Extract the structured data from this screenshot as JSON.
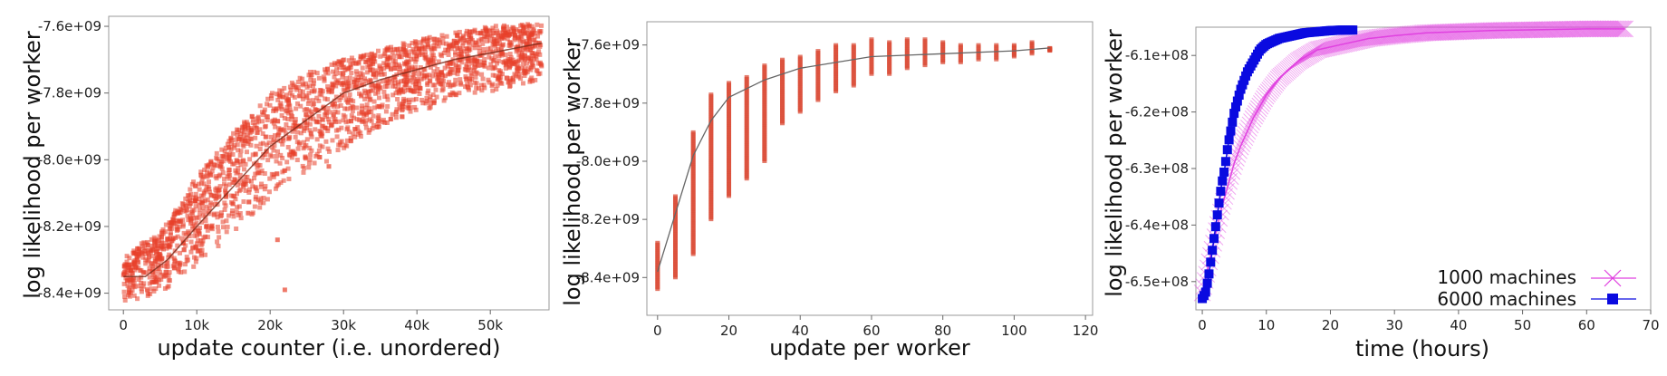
{
  "chart_data": [
    {
      "type": "scatter",
      "xlabel": "update counter (i.e. unordered)",
      "ylabel": "log likelihood per worker",
      "xlim": [
        -2000,
        58000
      ],
      "ylim": [
        -8450000000.0,
        -7570000000.0
      ],
      "x_ticks": [
        0,
        10000,
        20000,
        30000,
        40000,
        50000
      ],
      "x_tick_labels": [
        "0",
        "10k",
        "20k",
        "30k",
        "40k",
        "50k"
      ],
      "y_ticks": [
        -8400000000.0,
        -8200000000.0,
        -8000000000.0,
        -7800000000.0,
        -7600000000.0
      ],
      "y_tick_labels": [
        "-8.4e+09",
        "-8.2e+09",
        "-8.0e+09",
        "-7.8e+09",
        "-7.6e+09"
      ],
      "colors": {
        "points": "#e8402a",
        "trend": "#7a2a1a"
      },
      "series": [
        {
          "trend": [
            [
              0,
              -8350000000.0
            ],
            [
              3000,
              -8350000000.0
            ],
            [
              6000,
              -8300000000.0
            ],
            [
              10000,
              -8200000000.0
            ],
            [
              15000,
              -8080000000.0
            ],
            [
              20000,
              -7960000000.0
            ],
            [
              25000,
              -7880000000.0
            ],
            [
              30000,
              -7800000000.0
            ],
            [
              35000,
              -7760000000.0
            ],
            [
              40000,
              -7730000000.0
            ],
            [
              45000,
              -7700000000.0
            ],
            [
              50000,
              -7680000000.0
            ],
            [
              57000,
              -7650000000.0
            ]
          ],
          "band": [
            [
              0,
              -8430000000.0,
              -8280000000.0
            ],
            [
              5000,
              -8400000000.0,
              -8220000000.0
            ],
            [
              10000,
              -8320000000.0,
              -8050000000.0
            ],
            [
              15000,
              -8220000000.0,
              -7920000000.0
            ],
            [
              20000,
              -8120000000.0,
              -7800000000.0
            ],
            [
              25000,
              -8050000000.0,
              -7740000000.0
            ],
            [
              30000,
              -7970000000.0,
              -7700000000.0
            ],
            [
              35000,
              -7900000000.0,
              -7670000000.0
            ],
            [
              40000,
              -7860000000.0,
              -7640000000.0
            ],
            [
              45000,
              -7820000000.0,
              -7620000000.0
            ],
            [
              50000,
              -7800000000.0,
              -7600000000.0
            ],
            [
              57000,
              -7760000000.0,
              -7590000000.0
            ]
          ],
          "outliers": [
            [
              22000,
              -8390000000.0
            ],
            [
              21000,
              -8240000000.0
            ],
            [
              12000,
              -8200000000.0
            ],
            [
              28000,
              -8020000000.0
            ],
            [
              17000,
              -8160000000.0
            ]
          ]
        }
      ]
    },
    {
      "type": "scatter",
      "xlabel": "update per worker",
      "ylabel": "log likelihood per worker",
      "xlim": [
        -3,
        122
      ],
      "ylim": [
        -8530000000.0,
        -7520000000.0
      ],
      "x_ticks": [
        0,
        20,
        40,
        60,
        80,
        100,
        120
      ],
      "x_tick_labels": [
        "0",
        "20",
        "40",
        "60",
        "80",
        "100",
        "120"
      ],
      "y_ticks": [
        -8400000000.0,
        -8200000000.0,
        -8000000000.0,
        -7800000000.0,
        -7600000000.0
      ],
      "y_tick_labels": [
        "-8.4e+09",
        "-8.2e+09",
        "-8.0e+09",
        "-7.8e+09",
        "-7.6e+09"
      ],
      "colors": {
        "points": "#d9432c",
        "trend": "#666666"
      },
      "series": [
        {
          "columns": [
            [
              0,
              -8440000000.0,
              -8280000000.0
            ],
            [
              5,
              -8400000000.0,
              -8120000000.0
            ],
            [
              10,
              -8320000000.0,
              -7900000000.0
            ],
            [
              15,
              -8200000000.0,
              -7770000000.0
            ],
            [
              20,
              -8120000000.0,
              -7730000000.0
            ],
            [
              25,
              -8060000000.0,
              -7710000000.0
            ],
            [
              30,
              -8000000000.0,
              -7670000000.0
            ],
            [
              35,
              -7870000000.0,
              -7650000000.0
            ],
            [
              40,
              -7830000000.0,
              -7640000000.0
            ],
            [
              45,
              -7790000000.0,
              -7620000000.0
            ],
            [
              50,
              -7760000000.0,
              -7600000000.0
            ],
            [
              55,
              -7740000000.0,
              -7600000000.0
            ],
            [
              60,
              -7700000000.0,
              -7580000000.0
            ],
            [
              65,
              -7700000000.0,
              -7590000000.0
            ],
            [
              70,
              -7680000000.0,
              -7580000000.0
            ],
            [
              75,
              -7670000000.0,
              -7580000000.0
            ],
            [
              80,
              -7660000000.0,
              -7590000000.0
            ],
            [
              85,
              -7660000000.0,
              -7600000000.0
            ],
            [
              90,
              -7650000000.0,
              -7600000000.0
            ],
            [
              95,
              -7650000000.0,
              -7600000000.0
            ],
            [
              100,
              -7640000000.0,
              -7600000000.0
            ],
            [
              105,
              -7630000000.0,
              -7590000000.0
            ],
            [
              110,
              -7620000000.0,
              -7610000000.0
            ]
          ],
          "trend": [
            [
              0,
              -8380000000.0
            ],
            [
              5,
              -8180000000.0
            ],
            [
              10,
              -7980000000.0
            ],
            [
              15,
              -7860000000.0
            ],
            [
              20,
              -7780000000.0
            ],
            [
              30,
              -7720000000.0
            ],
            [
              40,
              -7680000000.0
            ],
            [
              50,
              -7660000000.0
            ],
            [
              60,
              -7640000000.0
            ],
            [
              80,
              -7630000000.0
            ],
            [
              100,
              -7620000000.0
            ],
            [
              110,
              -7610000000.0
            ]
          ]
        }
      ]
    },
    {
      "type": "line",
      "xlabel": "time (hours)",
      "ylabel": "log likelihood per worker",
      "xlim": [
        -1,
        70
      ],
      "ylim": [
        -655000000.0,
        -605000000.0
      ],
      "x_ticks": [
        0,
        10,
        20,
        30,
        40,
        50,
        60,
        70
      ],
      "x_tick_labels": [
        "0",
        "10",
        "20",
        "30",
        "40",
        "50",
        "60",
        "70"
      ],
      "y_ticks": [
        -650000000.0,
        -640000000.0,
        -630000000.0,
        -620000000.0,
        -610000000.0
      ],
      "y_tick_labels": [
        "-6.5e+08",
        "-6.4e+08",
        "-6.3e+08",
        "-6.2e+08",
        "-6.1e+08"
      ],
      "legend": "bottom-right",
      "colors": {
        "1000": "#e040e0",
        "6000": "#0a0ae0"
      },
      "series": [
        {
          "name": "1000 machines",
          "x": [
            0,
            1,
            2,
            3,
            4,
            5,
            6,
            8,
            10,
            12,
            15,
            18,
            22,
            26,
            30,
            35,
            40,
            45,
            50,
            55,
            60,
            66
          ],
          "y": [
            -652000000.0,
            -647000000.0,
            -642000000.0,
            -637000000.0,
            -633000000.0,
            -629000000.0,
            -626000000.0,
            -621000000.0,
            -617000000.0,
            -614000000.0,
            -611000000.0,
            -609000000.0,
            -608000000.0,
            -607000000.0,
            -606500000.0,
            -606000000.0,
            -605800000.0,
            -605600000.0,
            -605500000.0,
            -605400000.0,
            -605300000.0,
            -605300000.0
          ]
        },
        {
          "name": "6000 machines",
          "x": [
            0,
            0.5,
            1,
            1.5,
            2,
            2.5,
            3,
            3.5,
            4,
            4.5,
            5,
            5.5,
            6,
            7,
            8,
            9,
            10,
            11,
            12,
            14,
            16,
            18,
            20,
            22,
            23.5
          ],
          "y": [
            -653000000.0,
            -652000000.0,
            -649000000.0,
            -645000000.0,
            -641000000.0,
            -637000000.0,
            -633000000.0,
            -630000000.0,
            -626000000.0,
            -623000000.0,
            -620000000.0,
            -618000000.0,
            -616000000.0,
            -613000000.0,
            -611000000.0,
            -609000000.0,
            -608000000.0,
            -607500000.0,
            -607000000.0,
            -606500000.0,
            -606000000.0,
            -605800000.0,
            -605600000.0,
            -605500000.0,
            -605500000.0
          ]
        }
      ]
    }
  ]
}
